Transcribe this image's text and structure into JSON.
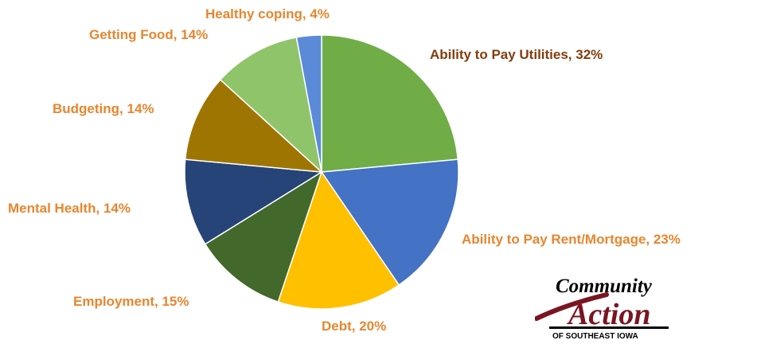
{
  "chart_data": {
    "type": "pie",
    "title": "",
    "start_angle_deg": 0,
    "slices": [
      {
        "label": "Ability to Pay Utilities",
        "value": 32,
        "display": "Ability to Pay Utilities, 32%",
        "color": "#70ad47",
        "label_color": "#843c0c"
      },
      {
        "label": "Ability to Pay Rent/Mortgage",
        "value": 23,
        "display": "Ability to Pay Rent/Mortgage, 23%",
        "color": "#4472c4",
        "label_color": "#e8862e"
      },
      {
        "label": "Debt",
        "value": 20,
        "display": "Debt, 20%",
        "color": "#ffc000",
        "label_color": "#e8862e"
      },
      {
        "label": "Employment",
        "value": 15,
        "display": "Employment, 15%",
        "color": "#43682b",
        "label_color": "#e8862e"
      },
      {
        "label": "Mental Health",
        "value": 14,
        "display": "Mental Health, 14%",
        "color": "#264478",
        "label_color": "#e8862e"
      },
      {
        "label": "Budgeting",
        "value": 14,
        "display": "Budgeting, 14%",
        "color": "#9e7500",
        "label_color": "#e8862e"
      },
      {
        "label": "Getting Food",
        "value": 14,
        "display": "Getting Food, 14%",
        "color": "#8fc46a",
        "label_color": "#e8862e"
      },
      {
        "label": "Healthy coping",
        "value": 4,
        "display": "Healthy coping, 4%",
        "color": "#5b8bd8",
        "label_color": "#e8862e"
      }
    ]
  },
  "logo": {
    "line1": "Community",
    "line2": "Action",
    "line3": "OF SOUTHEAST IOWA",
    "color_dark": "#000000",
    "color_accent": "#7a1522"
  }
}
